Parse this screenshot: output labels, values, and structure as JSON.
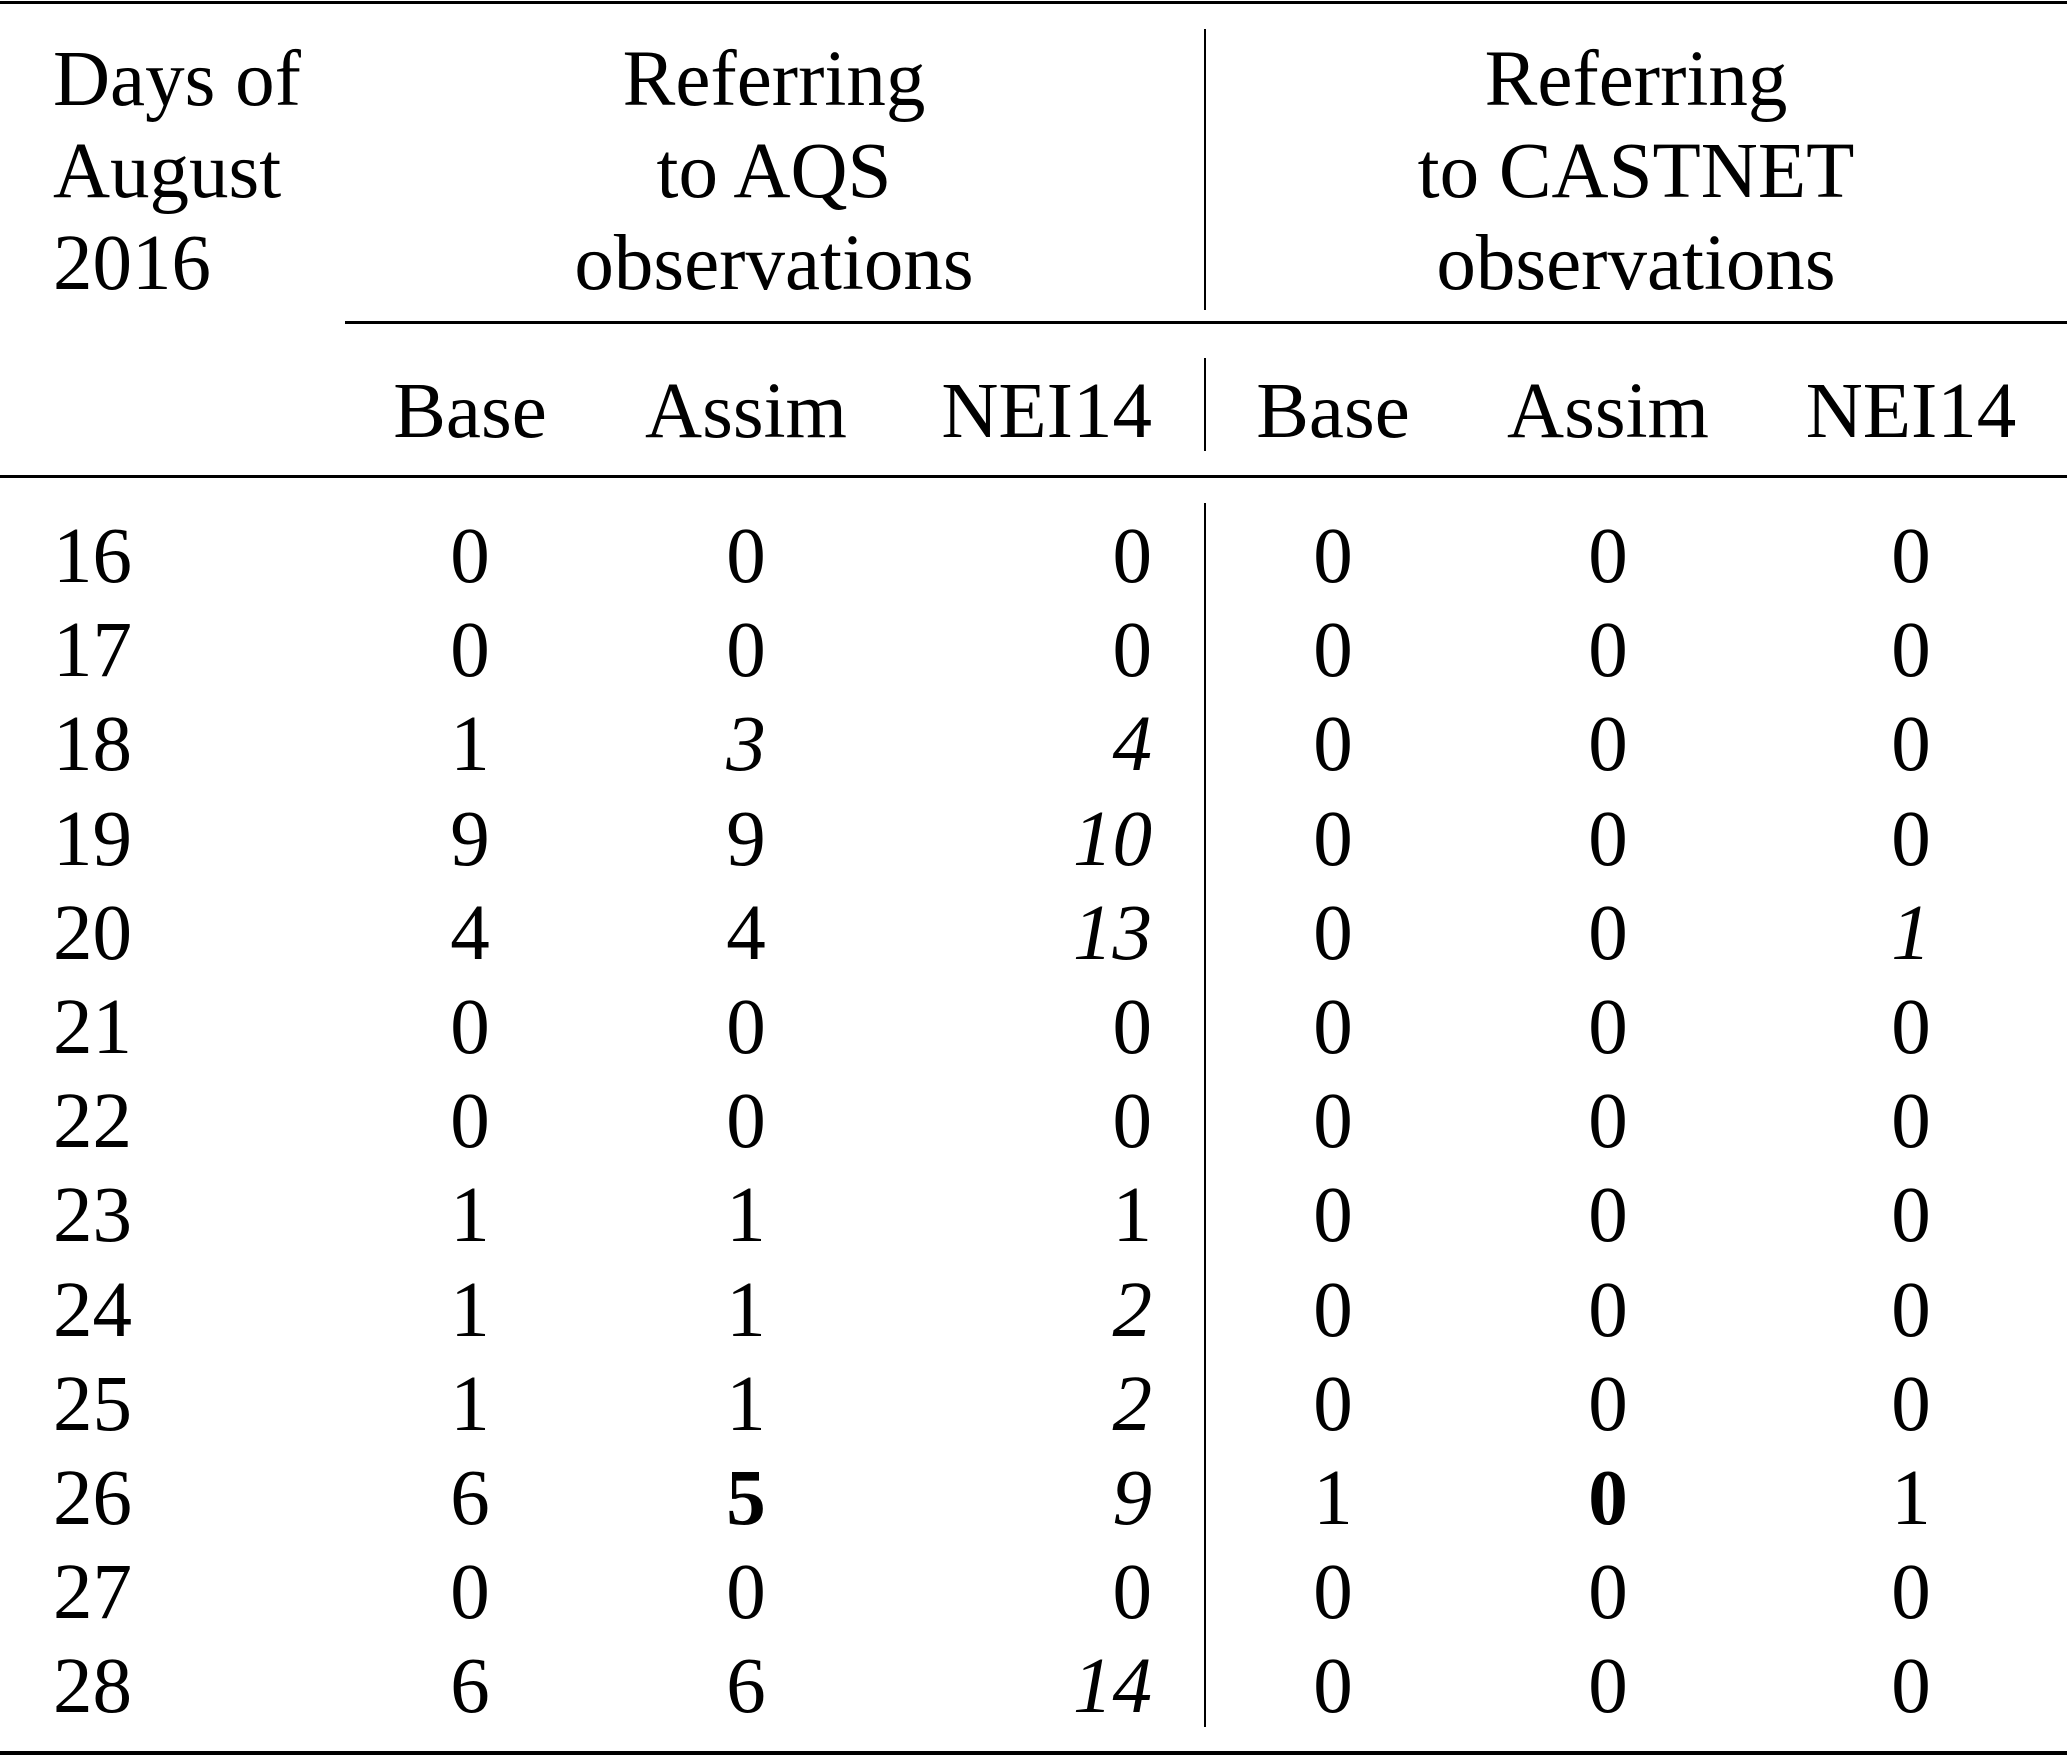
{
  "table": {
    "stub_header": [
      "Days of",
      "August",
      "2016"
    ],
    "groups": [
      {
        "label": [
          "Referring",
          "to AQS",
          "observations"
        ]
      },
      {
        "label": [
          "Referring",
          "to CASTNET",
          "observations"
        ]
      }
    ],
    "subheaders": [
      "Base",
      "Assim",
      "NEI14",
      "Base",
      "Assim",
      "NEI14"
    ],
    "rows": [
      {
        "day": "16",
        "cells": [
          {
            "v": "0"
          },
          {
            "v": "0"
          },
          {
            "v": "0"
          },
          {
            "v": "0"
          },
          {
            "v": "0"
          },
          {
            "v": "0"
          }
        ]
      },
      {
        "day": "17",
        "cells": [
          {
            "v": "0"
          },
          {
            "v": "0"
          },
          {
            "v": "0"
          },
          {
            "v": "0"
          },
          {
            "v": "0"
          },
          {
            "v": "0"
          }
        ]
      },
      {
        "day": "18",
        "cells": [
          {
            "v": "1"
          },
          {
            "v": "3",
            "emphasis": "italic"
          },
          {
            "v": "4",
            "emphasis": "italic"
          },
          {
            "v": "0"
          },
          {
            "v": "0"
          },
          {
            "v": "0"
          }
        ]
      },
      {
        "day": "19",
        "cells": [
          {
            "v": "9"
          },
          {
            "v": "9"
          },
          {
            "v": "10",
            "emphasis": "italic"
          },
          {
            "v": "0"
          },
          {
            "v": "0"
          },
          {
            "v": "0"
          }
        ]
      },
      {
        "day": "20",
        "cells": [
          {
            "v": "4"
          },
          {
            "v": "4"
          },
          {
            "v": "13",
            "emphasis": "italic"
          },
          {
            "v": "0"
          },
          {
            "v": "0"
          },
          {
            "v": "1",
            "emphasis": "italic"
          }
        ]
      },
      {
        "day": "21",
        "cells": [
          {
            "v": "0"
          },
          {
            "v": "0"
          },
          {
            "v": "0"
          },
          {
            "v": "0"
          },
          {
            "v": "0"
          },
          {
            "v": "0"
          }
        ]
      },
      {
        "day": "22",
        "cells": [
          {
            "v": "0"
          },
          {
            "v": "0"
          },
          {
            "v": "0"
          },
          {
            "v": "0"
          },
          {
            "v": "0"
          },
          {
            "v": "0"
          }
        ]
      },
      {
        "day": "23",
        "cells": [
          {
            "v": "1"
          },
          {
            "v": "1"
          },
          {
            "v": "1"
          },
          {
            "v": "0"
          },
          {
            "v": "0"
          },
          {
            "v": "0"
          }
        ]
      },
      {
        "day": "24",
        "cells": [
          {
            "v": "1"
          },
          {
            "v": "1"
          },
          {
            "v": "2",
            "emphasis": "italic"
          },
          {
            "v": "0"
          },
          {
            "v": "0"
          },
          {
            "v": "0"
          }
        ]
      },
      {
        "day": "25",
        "cells": [
          {
            "v": "1"
          },
          {
            "v": "1"
          },
          {
            "v": "2",
            "emphasis": "italic"
          },
          {
            "v": "0"
          },
          {
            "v": "0"
          },
          {
            "v": "0"
          }
        ]
      },
      {
        "day": "26",
        "cells": [
          {
            "v": "6"
          },
          {
            "v": "5",
            "emphasis": "bold"
          },
          {
            "v": "9",
            "emphasis": "italic"
          },
          {
            "v": "1"
          },
          {
            "v": "0",
            "emphasis": "bold"
          },
          {
            "v": "1"
          }
        ]
      },
      {
        "day": "27",
        "cells": [
          {
            "v": "0"
          },
          {
            "v": "0"
          },
          {
            "v": "0"
          },
          {
            "v": "0"
          },
          {
            "v": "0"
          },
          {
            "v": "0"
          }
        ]
      },
      {
        "day": "28",
        "cells": [
          {
            "v": "6"
          },
          {
            "v": "6"
          },
          {
            "v": "14",
            "emphasis": "italic"
          },
          {
            "v": "0"
          },
          {
            "v": "0"
          },
          {
            "v": "0"
          }
        ]
      }
    ]
  }
}
